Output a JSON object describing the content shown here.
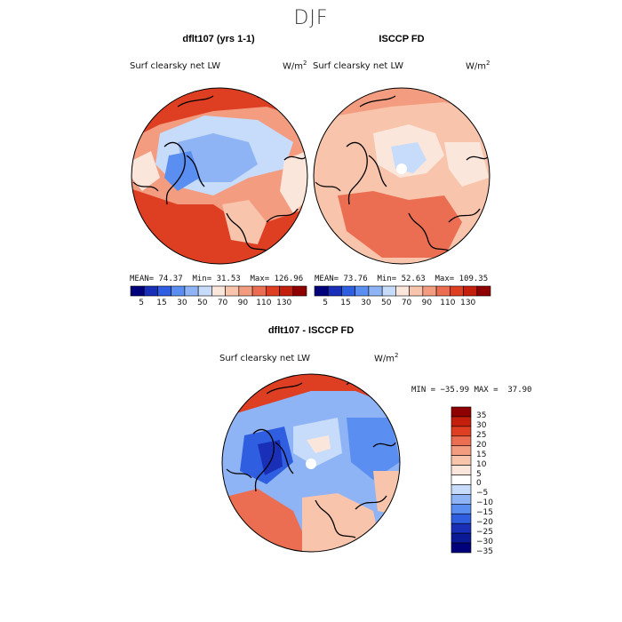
{
  "season": "DJF",
  "panels": {
    "model": {
      "title": "dflt107 (yrs 1-1)",
      "variable": "Surf clearsky net LW",
      "units": "W/m",
      "units_sup": "2",
      "stats": {
        "mean": "74.37",
        "min": "31.53",
        "max": "126.96"
      },
      "stats_text": {
        "mean_label": "MEAN=",
        "min_label": "Min=",
        "max_label": "Max="
      }
    },
    "obs": {
      "title": "ISCCP FD",
      "variable": "Surf clearsky net LW",
      "units": "W/m",
      "units_sup": "2",
      "stats": {
        "mean": "73.76",
        "min": "52.63",
        "max": "109.35"
      },
      "stats_text": {
        "mean_label": "MEAN=",
        "min_label": "Min=",
        "max_label": "Max="
      }
    },
    "diff": {
      "title": "dflt107 - ISCCP FD",
      "variable": "Surf clearsky net LW",
      "units": "W/m",
      "units_sup": "2",
      "minmax_text": "MIN = −35.99 MAX =  37.90"
    }
  },
  "colorbar_top": {
    "colors": [
      "#00007a",
      "#1a2fb8",
      "#2f5fe0",
      "#5a8ef0",
      "#8fb4f5",
      "#c6dcfa",
      "#fbe6dc",
      "#f8c4ac",
      "#f39c80",
      "#ec6e52",
      "#de3f23",
      "#c41f0c",
      "#8f0000"
    ],
    "labels": [
      "5",
      "15",
      "30",
      "50",
      "70",
      "90",
      "110",
      "130"
    ]
  },
  "colorbar_diff": {
    "colors": [
      "#8f0000",
      "#c41f0c",
      "#de3f23",
      "#ec6e52",
      "#f39c80",
      "#f8c4ac",
      "#fbe6dc",
      "#ffffff",
      "#c6dcfa",
      "#8fb4f5",
      "#5a8ef0",
      "#2f5fe0",
      "#1a2fb8",
      "#0a1a96",
      "#00007a"
    ],
    "labels": [
      "35",
      "30",
      "25",
      "20",
      "15",
      "10",
      "5",
      "0",
      "−5",
      "−10",
      "−15",
      "−20",
      "−25",
      "−30",
      "−35"
    ]
  }
}
